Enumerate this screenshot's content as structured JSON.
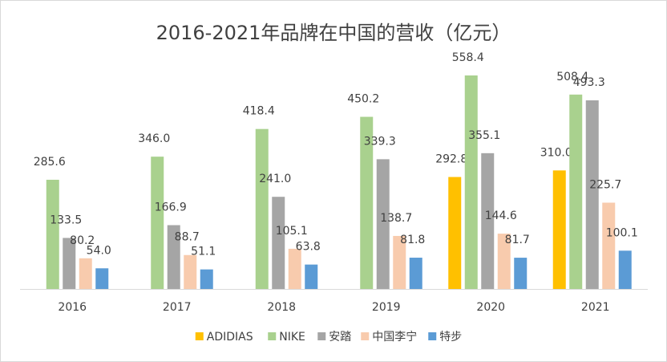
{
  "chart_data": {
    "type": "bar",
    "title": "2016-2021年品牌在中国的营收（亿元）",
    "categories": [
      "2016",
      "2017",
      "2018",
      "2019",
      "2020",
      "2021"
    ],
    "series": [
      {
        "name": "ADIDIAS",
        "color": "#ffc000",
        "values": [
          null,
          null,
          null,
          null,
          292.8,
          310.0
        ],
        "value_labels": [
          null,
          null,
          null,
          null,
          "292.8",
          "310.0"
        ]
      },
      {
        "name": "NIKE",
        "color": "#a9d18e",
        "values": [
          285.6,
          346.0,
          418.4,
          450.2,
          558.4,
          508.4
        ],
        "value_labels": [
          "285.6",
          "346.0",
          "418.4",
          "450.2",
          "558.4",
          "508.4"
        ]
      },
      {
        "name": "安踏",
        "color": "#a5a5a5",
        "values": [
          133.5,
          166.9,
          241.0,
          339.3,
          355.1,
          493.3
        ],
        "value_labels": [
          "133.5",
          "166.9",
          "241.0",
          "339.3",
          "355.1",
          "493.3"
        ]
      },
      {
        "name": "中国李宁",
        "color": "#f8cbad",
        "values": [
          80.2,
          88.7,
          105.1,
          138.7,
          144.6,
          225.7
        ],
        "value_labels": [
          "80.2",
          "88.7",
          "105.1",
          "138.7",
          "144.6",
          "225.7"
        ]
      },
      {
        "name": "特步",
        "color": "#5b9bd5",
        "values": [
          54.0,
          51.1,
          63.8,
          81.8,
          81.7,
          100.1
        ],
        "value_labels": [
          "54.0",
          "51.1",
          "63.8",
          "81.8",
          "81.7",
          "100.1"
        ]
      }
    ],
    "legend": "bottom"
  }
}
